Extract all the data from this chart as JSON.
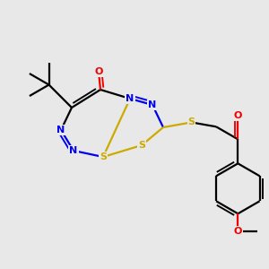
{
  "bg_color": "#e8e8e8",
  "colors": {
    "N": "#0000ee",
    "O": "#ee0000",
    "S": "#ccaa00",
    "C": "#000000",
    "bond": "#000000"
  },
  "lw": 1.6,
  "fs": 8.0,
  "figsize": [
    3.0,
    3.0
  ],
  "dpi": 100
}
